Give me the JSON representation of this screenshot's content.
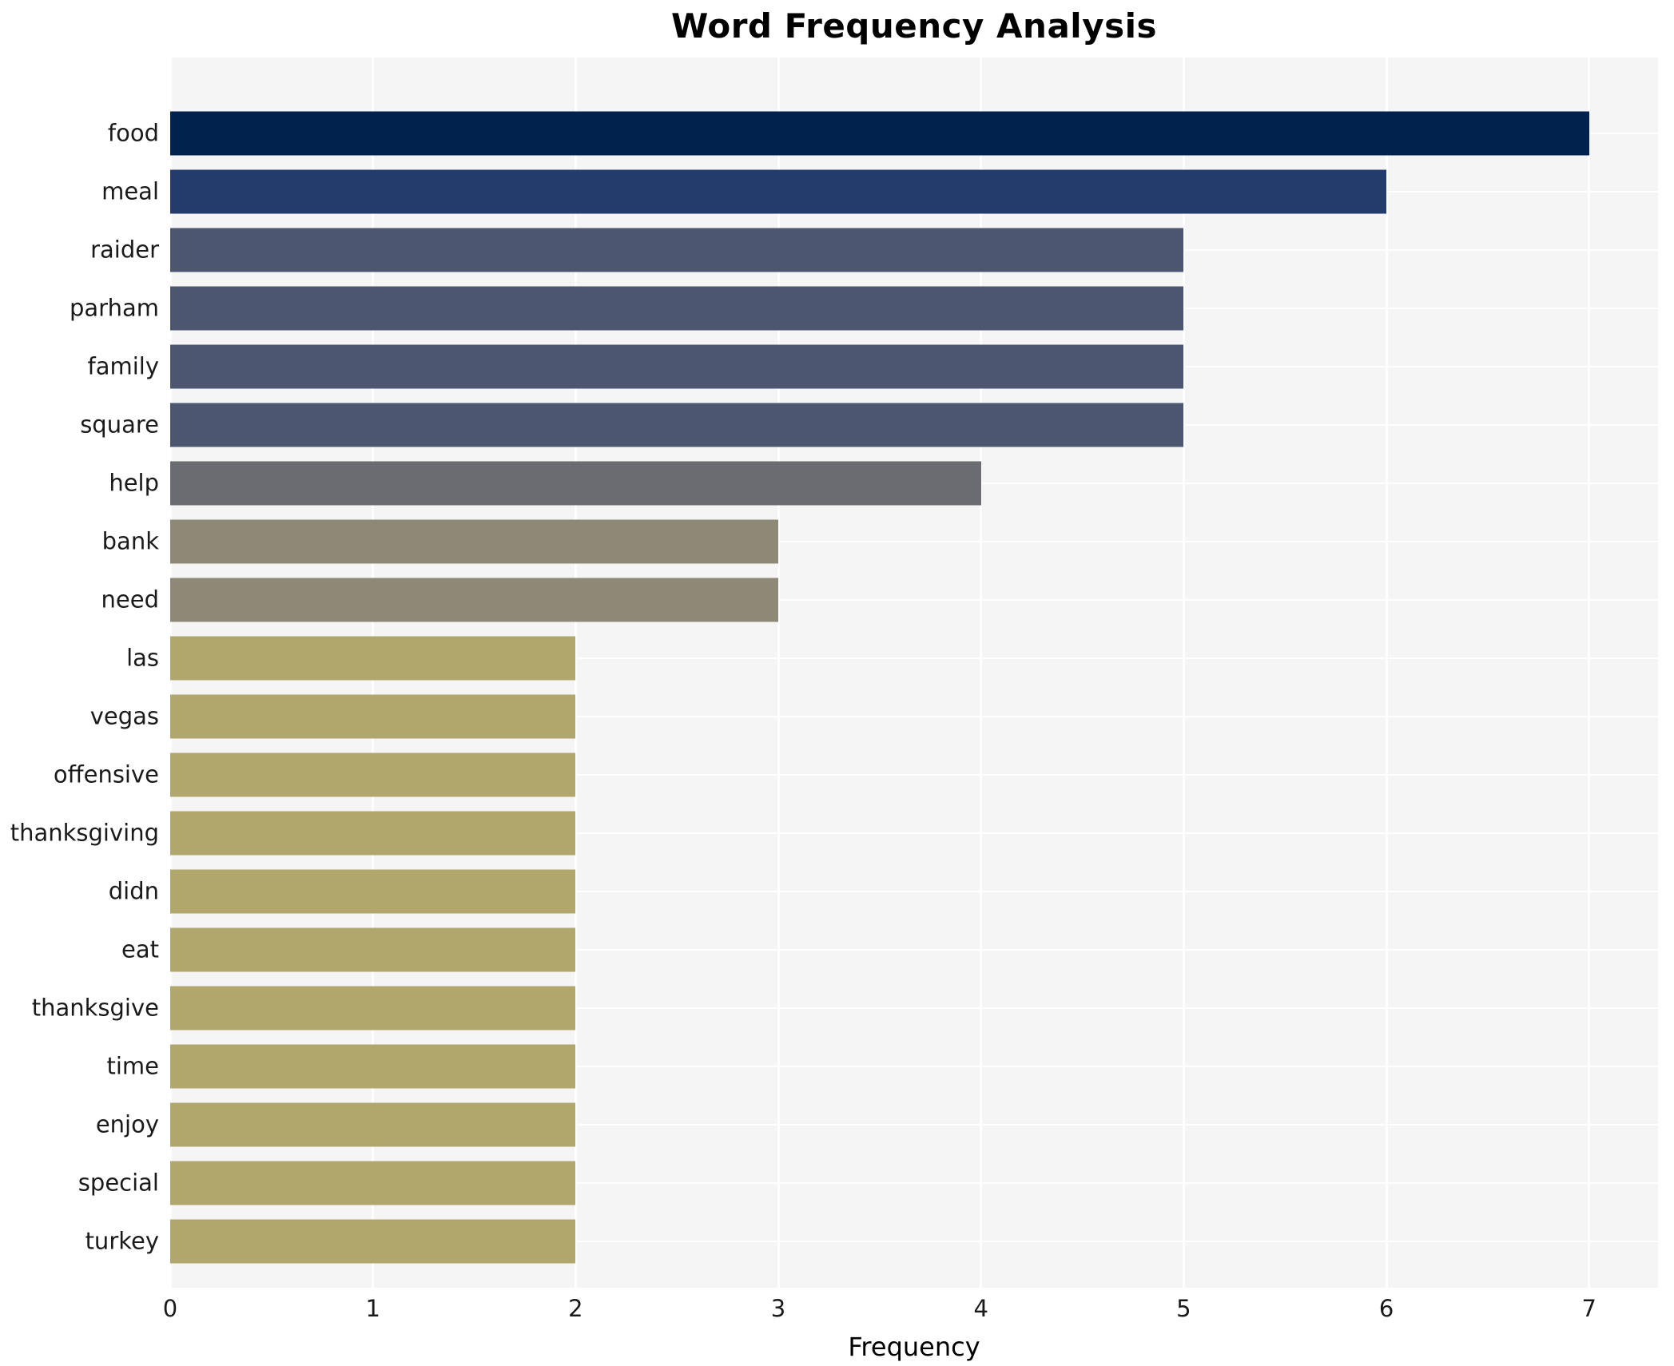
{
  "title": "Word Frequency Analysis",
  "colors": {
    "page_background": "#ffffff",
    "panel_background": "#f5f5f6",
    "gridline": "#ffffff",
    "text": "#1a1a1a",
    "value_7": "#01224d",
    "value_6": "#243c6b",
    "value_5": "#4d5670",
    "value_4": "#6b6c71",
    "value_3": "#8e8977",
    "value_2": "#b1a76c"
  },
  "chart_data": {
    "type": "bar",
    "orientation": "horizontal",
    "title": "Word Frequency Analysis",
    "xlabel": "Frequency",
    "ylabel": "",
    "categories": [
      "food",
      "meal",
      "raider",
      "parham",
      "family",
      "square",
      "help",
      "bank",
      "need",
      "las",
      "vegas",
      "offensive",
      "thanksgiving",
      "didn",
      "eat",
      "thanksgive",
      "time",
      "enjoy",
      "special",
      "turkey"
    ],
    "values": [
      7,
      6,
      5,
      5,
      5,
      5,
      4,
      3,
      3,
      2,
      2,
      2,
      2,
      2,
      2,
      2,
      2,
      2,
      2,
      2
    ],
    "bar_colors": [
      "#01224d",
      "#243c6b",
      "#4d5670",
      "#4d5670",
      "#4d5670",
      "#4d5670",
      "#6b6c71",
      "#8e8977",
      "#8e8977",
      "#b1a76c",
      "#b1a76c",
      "#b1a76c",
      "#b1a76c",
      "#b1a76c",
      "#b1a76c",
      "#b1a76c",
      "#b1a76c",
      "#b1a76c",
      "#b1a76c",
      "#b1a76c"
    ],
    "x_ticks": [
      0,
      1,
      2,
      3,
      4,
      5,
      6,
      7
    ],
    "xlim": [
      0,
      7.34
    ],
    "grid": true,
    "legend": "none"
  }
}
